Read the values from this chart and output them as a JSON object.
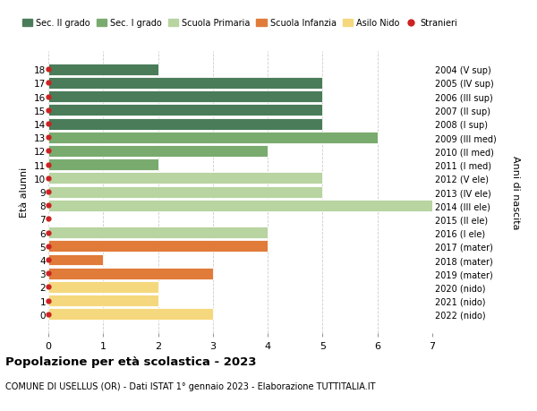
{
  "title": "Popolazione per età scolastica - 2023",
  "subtitle": "COMUNE DI USELLUS (OR) - Dati ISTAT 1° gennaio 2023 - Elaborazione TUTTITALIA.IT",
  "ylabel_left": "Età alunni",
  "ylabel_right": "Anni di nascita",
  "ages": [
    18,
    17,
    16,
    15,
    14,
    13,
    12,
    11,
    10,
    9,
    8,
    7,
    6,
    5,
    4,
    3,
    2,
    1,
    0
  ],
  "right_labels": [
    "2004 (V sup)",
    "2005 (IV sup)",
    "2006 (III sup)",
    "2007 (II sup)",
    "2008 (I sup)",
    "2009 (III med)",
    "2010 (II med)",
    "2011 (I med)",
    "2012 (V ele)",
    "2013 (IV ele)",
    "2014 (III ele)",
    "2015 (II ele)",
    "2016 (I ele)",
    "2017 (mater)",
    "2018 (mater)",
    "2019 (mater)",
    "2020 (nido)",
    "2021 (nido)",
    "2022 (nido)"
  ],
  "values": [
    2,
    5,
    5,
    5,
    5,
    6,
    4,
    2,
    5,
    5,
    7,
    0,
    4,
    4,
    1,
    3,
    2,
    2,
    3
  ],
  "colors": [
    "#4a7c59",
    "#4a7c59",
    "#4a7c59",
    "#4a7c59",
    "#4a7c59",
    "#7aab6e",
    "#7aab6e",
    "#7aab6e",
    "#b8d4a0",
    "#b8d4a0",
    "#b8d4a0",
    "#b8d4a0",
    "#b8d4a0",
    "#e07b3a",
    "#e07b3a",
    "#e07b3a",
    "#f5d87e",
    "#f5d87e",
    "#f5d87e"
  ],
  "stranieri_color": "#cc2222",
  "legend_entries": [
    {
      "label": "Sec. II grado",
      "color": "#4a7c59",
      "type": "patch"
    },
    {
      "label": "Sec. I grado",
      "color": "#7aab6e",
      "type": "patch"
    },
    {
      "label": "Scuola Primaria",
      "color": "#b8d4a0",
      "type": "patch"
    },
    {
      "label": "Scuola Infanzia",
      "color": "#e07b3a",
      "type": "patch"
    },
    {
      "label": "Asilo Nido",
      "color": "#f5d87e",
      "type": "patch"
    },
    {
      "label": "Stranieri",
      "color": "#cc2222",
      "type": "circle"
    }
  ],
  "xlim": [
    0,
    7
  ],
  "xticks": [
    0,
    1,
    2,
    3,
    4,
    5,
    6,
    7
  ],
  "background_color": "#ffffff",
  "grid_color": "#cccccc"
}
